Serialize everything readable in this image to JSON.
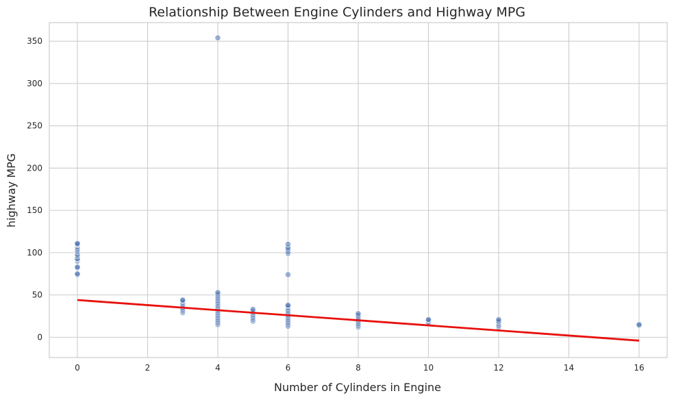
{
  "chart_data": {
    "type": "scatter",
    "title": "Relationship Between Engine Cylinders and Highway MPG",
    "xlabel": "Number of Cylinders in Engine",
    "ylabel": "highway MPG",
    "xlim": [
      -0.8,
      16.8
    ],
    "ylim": [
      -24,
      372
    ],
    "xticks": [
      0,
      2,
      4,
      6,
      8,
      10,
      12,
      14,
      16
    ],
    "yticks": [
      0,
      50,
      100,
      150,
      200,
      250,
      300,
      350
    ],
    "grid": true,
    "legend": "none",
    "colors": {
      "points": "#4c72b0",
      "trend": "#e8100c"
    },
    "series": [
      {
        "kind": "scatter",
        "points": [
          [
            0,
            74
          ],
          [
            0,
            75
          ],
          [
            0,
            82
          ],
          [
            0,
            83
          ],
          [
            0,
            90
          ],
          [
            0,
            92
          ],
          [
            0,
            93
          ],
          [
            0,
            96
          ],
          [
            0,
            98
          ],
          [
            0,
            101
          ],
          [
            0,
            103
          ],
          [
            0,
            105
          ],
          [
            0,
            107
          ],
          [
            0,
            109
          ],
          [
            0,
            110
          ],
          [
            0,
            111
          ],
          [
            3,
            29
          ],
          [
            3,
            31
          ],
          [
            3,
            33
          ],
          [
            3,
            35
          ],
          [
            3,
            37
          ],
          [
            3,
            39
          ],
          [
            3,
            41
          ],
          [
            3,
            43
          ],
          [
            3,
            44
          ],
          [
            4,
            15
          ],
          [
            4,
            17
          ],
          [
            4,
            19
          ],
          [
            4,
            21
          ],
          [
            4,
            23
          ],
          [
            4,
            25
          ],
          [
            4,
            27
          ],
          [
            4,
            29
          ],
          [
            4,
            31
          ],
          [
            4,
            33
          ],
          [
            4,
            35
          ],
          [
            4,
            37
          ],
          [
            4,
            39
          ],
          [
            4,
            41
          ],
          [
            4,
            43
          ],
          [
            4,
            45
          ],
          [
            4,
            47
          ],
          [
            4,
            49
          ],
          [
            4,
            51
          ],
          [
            4,
            53
          ],
          [
            4,
            354
          ],
          [
            5,
            19
          ],
          [
            5,
            21
          ],
          [
            5,
            23
          ],
          [
            5,
            25
          ],
          [
            5,
            27
          ],
          [
            5,
            29
          ],
          [
            5,
            31
          ],
          [
            5,
            33
          ],
          [
            6,
            13
          ],
          [
            6,
            15
          ],
          [
            6,
            17
          ],
          [
            6,
            19
          ],
          [
            6,
            21
          ],
          [
            6,
            23
          ],
          [
            6,
            25
          ],
          [
            6,
            27
          ],
          [
            6,
            29
          ],
          [
            6,
            31
          ],
          [
            6,
            33
          ],
          [
            6,
            35
          ],
          [
            6,
            37
          ],
          [
            6,
            38
          ],
          [
            6,
            74
          ],
          [
            6,
            99
          ],
          [
            6,
            101
          ],
          [
            6,
            104
          ],
          [
            6,
            106
          ],
          [
            6,
            110
          ],
          [
            8,
            12
          ],
          [
            8,
            14
          ],
          [
            8,
            16
          ],
          [
            8,
            18
          ],
          [
            8,
            20
          ],
          [
            8,
            22
          ],
          [
            8,
            24
          ],
          [
            8,
            26
          ],
          [
            8,
            28
          ],
          [
            10,
            16
          ],
          [
            10,
            18
          ],
          [
            10,
            20
          ],
          [
            10,
            21
          ],
          [
            12,
            12
          ],
          [
            12,
            14
          ],
          [
            12,
            16
          ],
          [
            12,
            18
          ],
          [
            12,
            19
          ],
          [
            12,
            21
          ],
          [
            16,
            14
          ],
          [
            16,
            15
          ]
        ]
      },
      {
        "kind": "line",
        "points": [
          [
            0,
            44
          ],
          [
            16,
            -4
          ]
        ]
      }
    ]
  }
}
